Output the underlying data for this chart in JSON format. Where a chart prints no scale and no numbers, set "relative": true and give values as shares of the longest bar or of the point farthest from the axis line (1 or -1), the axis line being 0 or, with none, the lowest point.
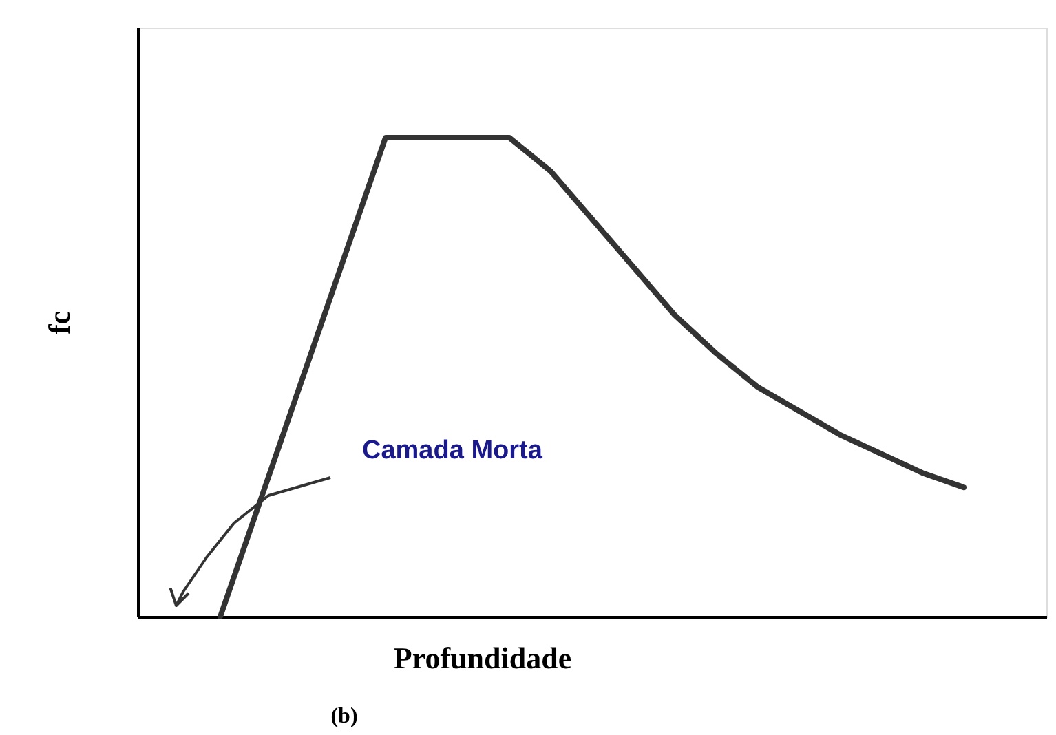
{
  "chart_data": {
    "type": "line",
    "relative": true,
    "xlabel": "Profundidade",
    "ylabel": "fc",
    "categories": [
      null,
      null,
      null,
      null,
      null,
      null,
      null,
      null,
      null,
      null,
      null,
      null,
      null,
      null,
      null,
      null,
      null,
      null,
      null,
      null,
      null,
      null,
      null
    ],
    "series": [
      {
        "color": "#333333",
        "values": [
          null,
          null,
          0,
          0.25,
          0.5,
          0.75,
          1,
          1,
          1,
          1,
          0.93,
          0.83,
          0.73,
          0.63,
          0.55,
          0.48,
          0.43,
          0.38,
          0.34,
          0.3,
          0.27,
          null,
          null
        ]
      }
    ],
    "annotations": [
      "Camada Morta",
      "(b)"
    ],
    "tick_labels": false,
    "grid": false,
    "marker": "none",
    "line_style": "solid"
  }
}
